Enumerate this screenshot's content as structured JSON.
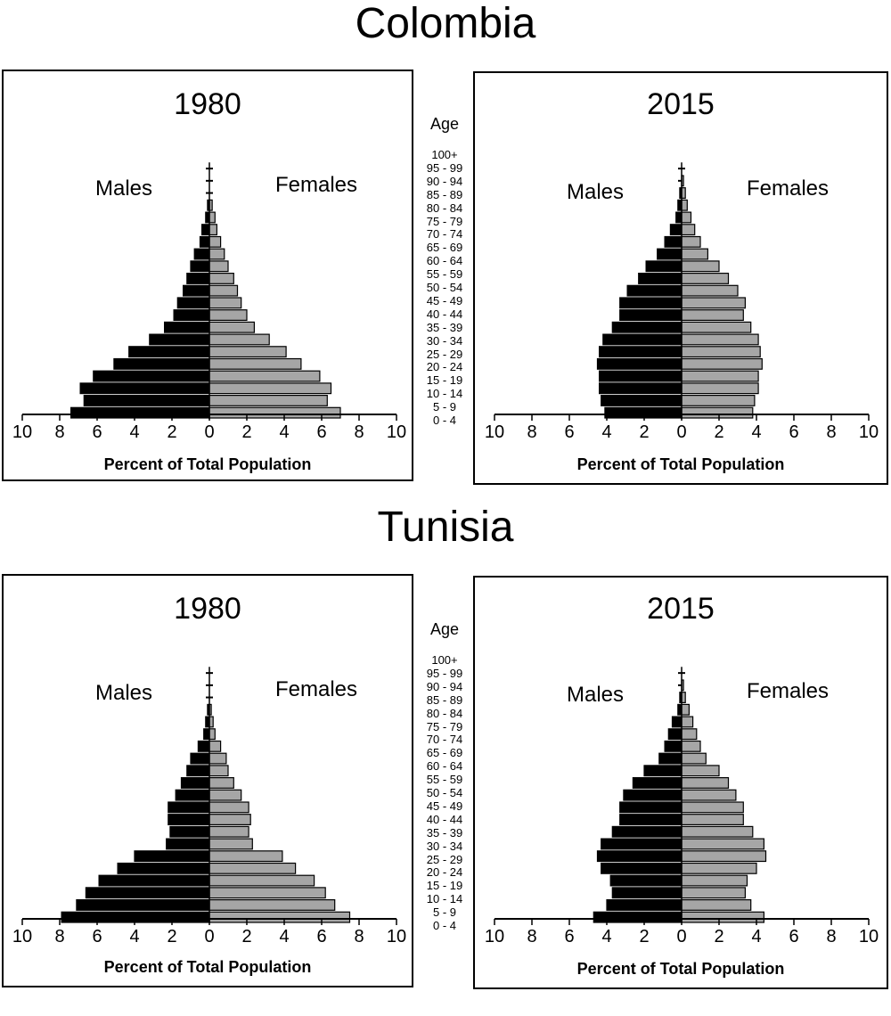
{
  "titles": {
    "colombia": "Colombia",
    "tunisia": "Tunisia"
  },
  "labels": {
    "males": "Males",
    "females": "Females",
    "age": "Age",
    "xlabel": "Percent of Total Population"
  },
  "age_groups": [
    "0 - 4",
    "5 - 9",
    "10 - 14",
    "15 - 19",
    "20 - 24",
    "25 - 29",
    "30 - 34",
    "35 - 39",
    "40 - 44",
    "45 - 49",
    "50 - 54",
    "55 - 59",
    "60 - 64",
    "65 - 69",
    "70 - 74",
    "75 - 79",
    "80 - 84",
    "85 - 89",
    "90 - 94",
    "95 - 99",
    "100+"
  ],
  "colors": {
    "male_bar": "#000000",
    "female_bar": "#a6a6a6",
    "outline": "#000000"
  },
  "chart_data": [
    {
      "type": "bar",
      "country": "Colombia",
      "title": "1980",
      "xlabel": "Percent of Total Population",
      "xlim": [
        -10,
        10
      ],
      "xticks": [
        10,
        8,
        6,
        4,
        2,
        0,
        2,
        4,
        6,
        8,
        10
      ],
      "categories": [
        "0 - 4",
        "5 - 9",
        "10 - 14",
        "15 - 19",
        "20 - 24",
        "25 - 29",
        "30 - 34",
        "35 - 39",
        "40 - 44",
        "45 - 49",
        "50 - 54",
        "55 - 59",
        "60 - 64",
        "65 - 69",
        "70 - 74",
        "75 - 79",
        "80 - 84",
        "85 - 89",
        "90 - 94",
        "95 - 99",
        "100+"
      ],
      "series": [
        {
          "name": "Males",
          "values": [
            7.4,
            6.7,
            6.9,
            6.2,
            5.1,
            4.3,
            3.2,
            2.4,
            1.9,
            1.7,
            1.4,
            1.2,
            1.0,
            0.8,
            0.5,
            0.4,
            0.2,
            0.1,
            0.05,
            0.02,
            0.01
          ]
        },
        {
          "name": "Females",
          "values": [
            7.0,
            6.3,
            6.5,
            5.9,
            4.9,
            4.1,
            3.2,
            2.4,
            2.0,
            1.7,
            1.5,
            1.3,
            1.0,
            0.8,
            0.6,
            0.4,
            0.3,
            0.15,
            0.05,
            0.02,
            0.01
          ]
        }
      ]
    },
    {
      "type": "bar",
      "country": "Colombia",
      "title": "2015",
      "xlabel": "Percent of Total Population",
      "xlim": [
        -10,
        10
      ],
      "xticks": [
        10,
        8,
        6,
        4,
        2,
        0,
        2,
        4,
        6,
        8,
        10
      ],
      "categories": [
        "0 - 4",
        "5 - 9",
        "10 - 14",
        "15 - 19",
        "20 - 24",
        "25 - 29",
        "30 - 34",
        "35 - 39",
        "40 - 44",
        "45 - 49",
        "50 - 54",
        "55 - 59",
        "60 - 64",
        "65 - 69",
        "70 - 74",
        "75 - 79",
        "80 - 84",
        "85 - 89",
        "90 - 94",
        "95 - 99",
        "100+"
      ],
      "series": [
        {
          "name": "Males",
          "values": [
            4.1,
            4.3,
            4.4,
            4.4,
            4.5,
            4.4,
            4.2,
            3.7,
            3.3,
            3.3,
            2.9,
            2.3,
            1.9,
            1.3,
            0.9,
            0.6,
            0.3,
            0.2,
            0.1,
            0.05,
            0.02
          ]
        },
        {
          "name": "Females",
          "values": [
            3.8,
            3.9,
            4.1,
            4.1,
            4.3,
            4.2,
            4.1,
            3.7,
            3.3,
            3.4,
            3.0,
            2.5,
            2.0,
            1.4,
            1.0,
            0.7,
            0.5,
            0.3,
            0.2,
            0.1,
            0.05
          ]
        }
      ]
    },
    {
      "type": "bar",
      "country": "Tunisia",
      "title": "1980",
      "xlabel": "Percent of Total Population",
      "xlim": [
        -10,
        10
      ],
      "xticks": [
        10,
        8,
        6,
        4,
        2,
        0,
        2,
        4,
        6,
        8,
        10
      ],
      "categories": [
        "0 - 4",
        "5 - 9",
        "10 - 14",
        "15 - 19",
        "20 - 24",
        "25 - 29",
        "30 - 34",
        "35 - 39",
        "40 - 44",
        "45 - 49",
        "50 - 54",
        "55 - 59",
        "60 - 64",
        "65 - 69",
        "70 - 74",
        "75 - 79",
        "80 - 84",
        "85 - 89",
        "90 - 94",
        "95 - 99",
        "100+"
      ],
      "series": [
        {
          "name": "Males",
          "values": [
            7.9,
            7.1,
            6.6,
            5.9,
            4.9,
            4.0,
            2.3,
            2.1,
            2.2,
            2.2,
            1.8,
            1.5,
            1.2,
            1.0,
            0.6,
            0.3,
            0.2,
            0.1,
            0.05,
            0.02,
            0.01
          ]
        },
        {
          "name": "Females",
          "values": [
            7.5,
            6.7,
            6.2,
            5.6,
            4.6,
            3.9,
            2.3,
            2.1,
            2.2,
            2.1,
            1.7,
            1.3,
            1.0,
            0.9,
            0.6,
            0.3,
            0.2,
            0.1,
            0.05,
            0.02,
            0.01
          ]
        }
      ]
    },
    {
      "type": "bar",
      "country": "Tunisia",
      "title": "2015",
      "xlabel": "Percent of Total Population",
      "xlim": [
        -10,
        10
      ],
      "xticks": [
        10,
        8,
        6,
        4,
        2,
        0,
        2,
        4,
        6,
        8,
        10
      ],
      "categories": [
        "0 - 4",
        "5 - 9",
        "10 - 14",
        "15 - 19",
        "20 - 24",
        "25 - 29",
        "30 - 34",
        "35 - 39",
        "40 - 44",
        "45 - 49",
        "50 - 54",
        "55 - 59",
        "60 - 64",
        "65 - 69",
        "70 - 74",
        "75 - 79",
        "80 - 84",
        "85 - 89",
        "90 - 94",
        "95 - 99",
        "100+"
      ],
      "series": [
        {
          "name": "Males",
          "values": [
            4.7,
            4.0,
            3.7,
            3.8,
            4.3,
            4.5,
            4.3,
            3.7,
            3.3,
            3.3,
            3.1,
            2.6,
            2.0,
            1.2,
            0.9,
            0.7,
            0.5,
            0.2,
            0.1,
            0.05,
            0.02
          ]
        },
        {
          "name": "Females",
          "values": [
            4.4,
            3.7,
            3.4,
            3.5,
            4.0,
            4.5,
            4.4,
            3.8,
            3.3,
            3.3,
            2.9,
            2.5,
            2.0,
            1.3,
            1.0,
            0.8,
            0.6,
            0.4,
            0.2,
            0.1,
            0.05
          ]
        }
      ]
    }
  ]
}
